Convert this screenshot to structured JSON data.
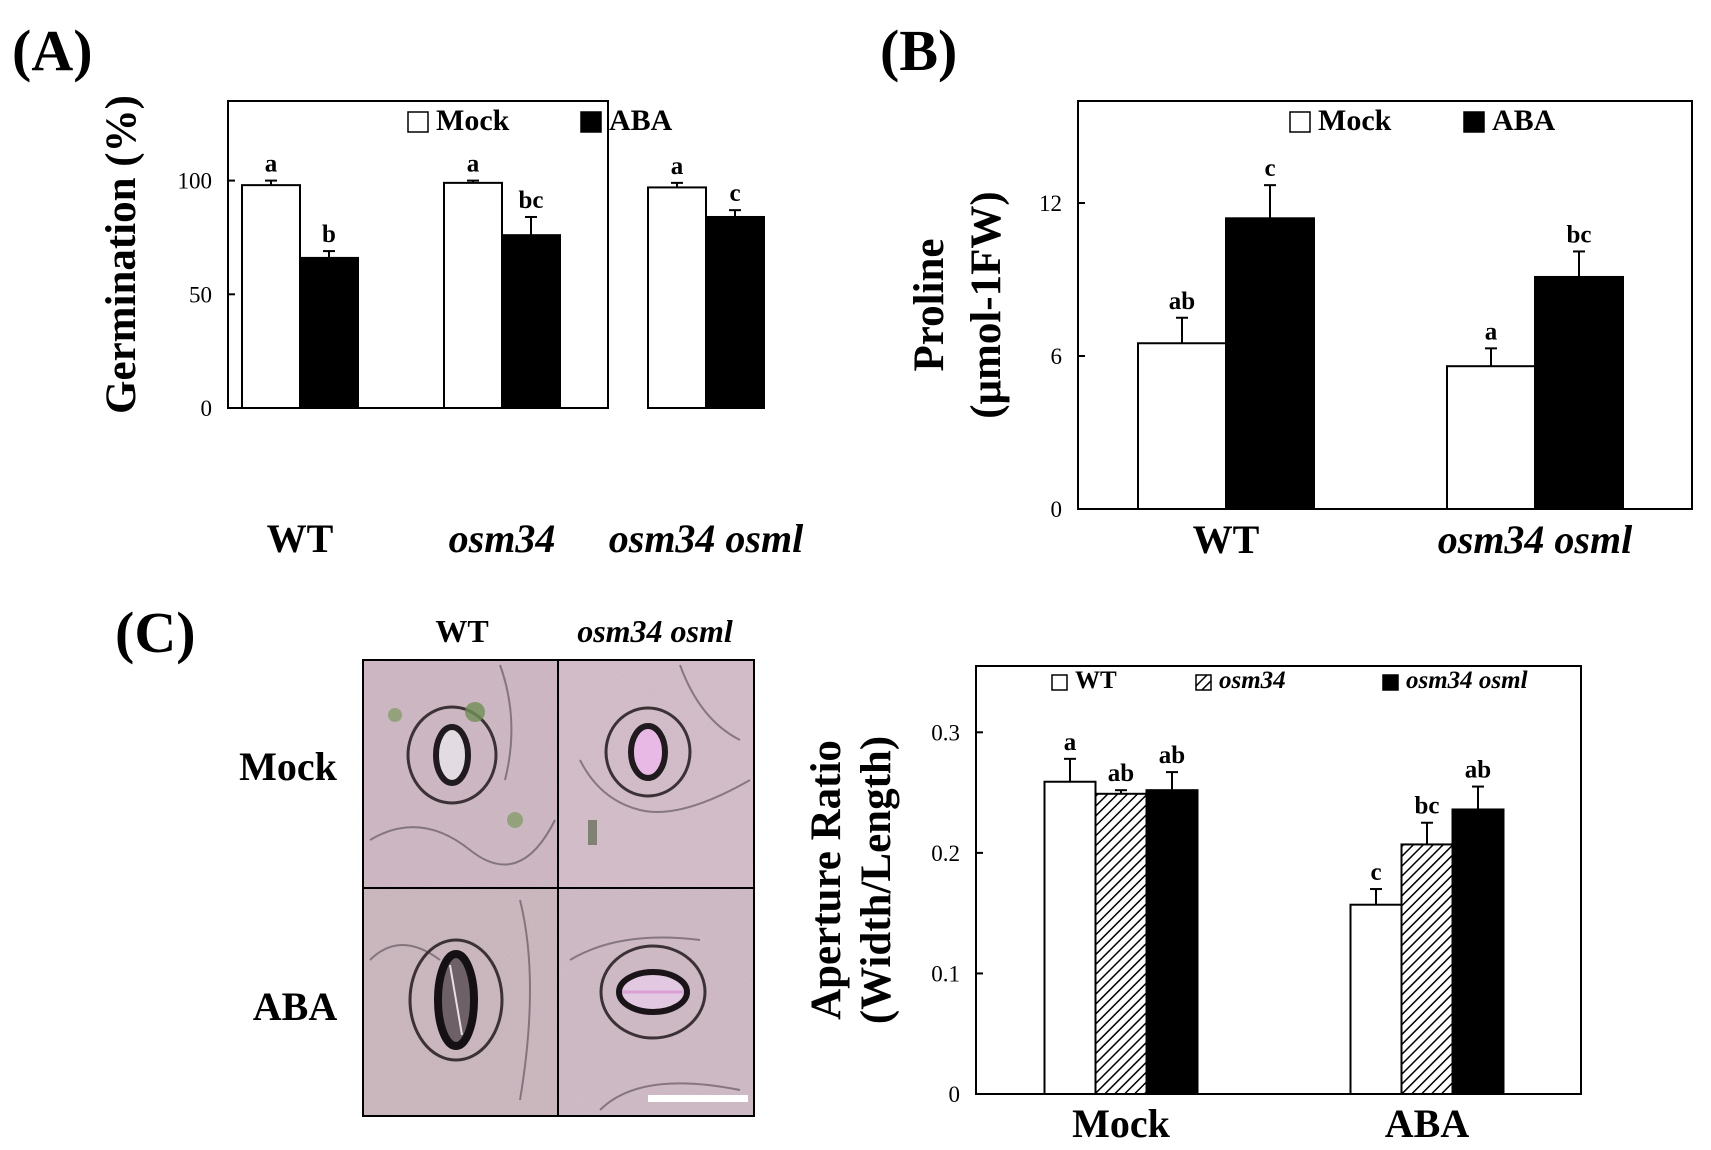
{
  "panels": {
    "A": "(A)",
    "B": "(B)",
    "C": "(C)"
  },
  "chart_data": [
    {
      "type": "bar",
      "panel": "A",
      "categories": [
        "WT",
        "osm34",
        "osm34 osml"
      ],
      "series": [
        {
          "name": "Mock",
          "values": [
            98,
            99,
            97
          ],
          "errors": [
            2,
            1,
            2
          ],
          "letters": [
            "a",
            "a",
            "a"
          ],
          "color": "#ffffff"
        },
        {
          "name": "ABA",
          "values": [
            66,
            76,
            84
          ],
          "errors": [
            3,
            8,
            3
          ],
          "letters": [
            "b",
            "bc",
            "c"
          ],
          "color": "#000000"
        }
      ],
      "ylabel": "Germination (%)",
      "yticks": [
        0,
        50,
        100
      ],
      "ylim": [
        0,
        135
      ],
      "legend_position": "top"
    },
    {
      "type": "bar",
      "panel": "B",
      "categories": [
        "WT",
        "osm34 osml"
      ],
      "series": [
        {
          "name": "Mock",
          "values": [
            6.5,
            5.6
          ],
          "errors": [
            1.0,
            0.7
          ],
          "letters": [
            "ab",
            "a"
          ],
          "color": "#ffffff"
        },
        {
          "name": "ABA",
          "values": [
            11.4,
            9.1
          ],
          "errors": [
            1.3,
            1.0
          ],
          "letters": [
            "c",
            "bc"
          ],
          "color": "#000000"
        }
      ],
      "ylabel": "Proline",
      "ylabel2": "(μmol-1FW)",
      "yticks": [
        0,
        6,
        12
      ],
      "ylim": [
        0,
        16
      ],
      "legend_position": "top"
    },
    {
      "type": "bar",
      "panel": "C",
      "categories": [
        "Mock",
        "ABA"
      ],
      "series": [
        {
          "name": "WT",
          "values": [
            0.259,
            0.157
          ],
          "errors": [
            0.019,
            0.013
          ],
          "letters": [
            "a",
            "c"
          ],
          "color": "#ffffff"
        },
        {
          "name": "osm34",
          "values": [
            0.249,
            0.207
          ],
          "errors": [
            0.003,
            0.018
          ],
          "letters": [
            "ab",
            "bc"
          ],
          "color": "hatched"
        },
        {
          "name": "osm34 osml",
          "values": [
            0.252,
            0.236
          ],
          "errors": [
            0.015,
            0.019
          ],
          "letters": [
            "ab",
            "ab"
          ],
          "color": "#000000"
        }
      ],
      "ylabel": "Aperture Ratio",
      "ylabel2": "(Width/Length)",
      "yticks": [
        0,
        0.1,
        0.2,
        0.3
      ],
      "ylim": [
        0,
        0.355
      ],
      "legend_position": "top"
    }
  ],
  "micrograph": {
    "columns": [
      "WT",
      "osm34 osml"
    ],
    "rows": [
      "Mock",
      "ABA"
    ]
  }
}
